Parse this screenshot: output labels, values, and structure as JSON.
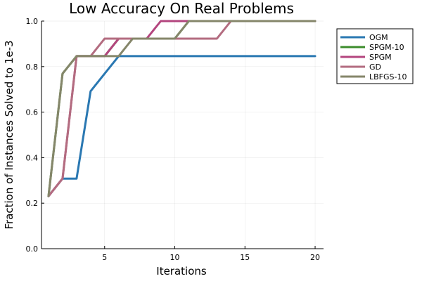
{
  "chart_data": {
    "type": "line",
    "title": "Low Accuracy On Real Problems",
    "xlabel": "Iterations",
    "ylabel": "Fraction of Instances Solved  to 1e-3",
    "xlim": [
      0.5,
      20.6
    ],
    "ylim": [
      0,
      1.0
    ],
    "xticks": [
      5,
      10,
      15,
      20
    ],
    "yticks": [
      0.0,
      0.2,
      0.4,
      0.6,
      0.8,
      1.0
    ],
    "xtick_labels": [
      "5",
      "10",
      "15",
      "20"
    ],
    "ytick_labels": [
      "0.0",
      "0.2",
      "0.4",
      "0.6",
      "0.8",
      "1.0"
    ],
    "grid": true,
    "legend_position": "outside-top-right",
    "x": [
      1,
      2,
      3,
      4,
      5,
      6,
      7,
      8,
      9,
      10,
      11,
      12,
      13,
      14,
      15,
      16,
      17,
      18,
      19,
      20
    ],
    "series": [
      {
        "name": "OGM",
        "color": "#2a78b2",
        "values": [
          0.231,
          0.308,
          0.308,
          0.692,
          0.769,
          0.846,
          0.846,
          0.846,
          0.846,
          0.846,
          0.846,
          0.846,
          0.846,
          0.846,
          0.846,
          0.846,
          0.846,
          0.846,
          0.846,
          0.846
        ]
      },
      {
        "name": "SPGM-10",
        "color": "#3c8c2c",
        "values": [
          0.231,
          0.769,
          0.846,
          0.846,
          0.846,
          0.923,
          0.923,
          0.923,
          0.923,
          0.923,
          1.0,
          1.0,
          1.0,
          1.0,
          1.0,
          1.0,
          1.0,
          1.0,
          1.0,
          1.0
        ]
      },
      {
        "name": "SPGM",
        "color": "#b3457e",
        "values": [
          0.231,
          0.308,
          0.846,
          0.846,
          0.846,
          0.923,
          0.923,
          0.923,
          1.0,
          1.0,
          1.0,
          1.0,
          1.0,
          1.0,
          1.0,
          1.0,
          1.0,
          1.0,
          1.0,
          1.0
        ]
      },
      {
        "name": "GD",
        "color": "#b36c80",
        "values": [
          0.231,
          0.308,
          0.846,
          0.846,
          0.923,
          0.923,
          0.923,
          0.923,
          0.923,
          0.923,
          0.923,
          0.923,
          0.923,
          1.0,
          1.0,
          1.0,
          1.0,
          1.0,
          1.0,
          1.0
        ]
      },
      {
        "name": "LBFGS-10",
        "color": "#85866a",
        "values": [
          0.231,
          0.769,
          0.846,
          0.846,
          0.846,
          0.846,
          0.923,
          0.923,
          0.923,
          0.923,
          1.0,
          1.0,
          1.0,
          1.0,
          1.0,
          1.0,
          1.0,
          1.0,
          1.0,
          1.0
        ]
      }
    ]
  }
}
